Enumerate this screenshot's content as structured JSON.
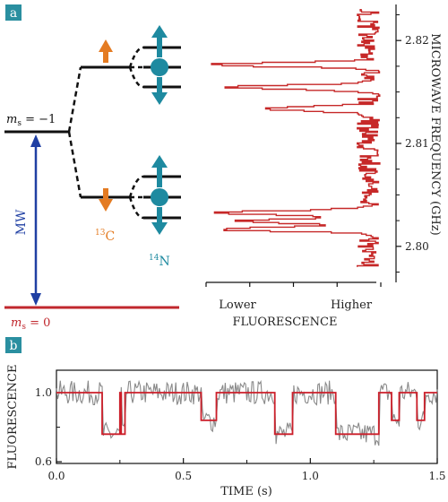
{
  "panels": {
    "a": {
      "label": "a"
    },
    "b": {
      "label": "b"
    }
  },
  "diagram": {
    "ms_minus1": {
      "pre": "m",
      "sub": "s",
      "post": " = −1"
    },
    "ms_zero": {
      "pre": "m",
      "sub": "s",
      "post": " = 0"
    },
    "mw_label": "MW",
    "c13": {
      "sup": "13",
      "base": "C"
    },
    "n14": {
      "sup": "14",
      "base": "N"
    }
  },
  "colors": {
    "panel_label_bg": "#2a8fa0",
    "mw_blue": "#1f3fa3",
    "ground_red": "#c0272d",
    "c13_orange": "#e47b22",
    "n14_teal": "#1e8aa0",
    "spectrum_red": "#c62828",
    "trace_gray": "#8a8a8a",
    "fit_red": "#cc1f2a"
  },
  "chart_data": [
    {
      "type": "line",
      "xlabel": "FLUORESCENCE",
      "ylabel": "MICROWAVE FREQUENCY (GHz)",
      "x_tick_labels": [
        "Lower",
        "Higher"
      ],
      "y_ticks": [
        2.8,
        2.81,
        2.82
      ],
      "y_tick_labels": [
        "2.80",
        "2.81",
        "2.82"
      ],
      "ylim": [
        2.7965,
        2.8235
      ],
      "xlim": [
        0,
        1
      ],
      "dips": [
        {
          "freq": 2.8032,
          "min_fluorescence": 0.05
        },
        {
          "freq": 2.8024,
          "min_fluorescence": 0.15
        },
        {
          "freq": 2.8016,
          "min_fluorescence": 0.06
        },
        {
          "freq": 2.8176,
          "min_fluorescence": 0.04
        },
        {
          "freq": 2.8154,
          "min_fluorescence": 0.12
        },
        {
          "freq": 2.8133,
          "min_fluorescence": 0.3
        }
      ]
    },
    {
      "type": "line",
      "xlabel": "TIME (s)",
      "ylabel": "FLUORESCENCE",
      "x_ticks": [
        0.0,
        0.5,
        1.0,
        1.5
      ],
      "x_tick_labels": [
        "0.0",
        "0.5",
        "1.0",
        "1.5"
      ],
      "y_ticks": [
        0.6,
        1.0
      ],
      "y_tick_labels": [
        "0.6",
        "1.0"
      ],
      "xlim": [
        0,
        1.5
      ],
      "ylim": [
        0.59,
        1.13
      ],
      "fit_steps": [
        {
          "x_start": 0.0,
          "x_end": 0.18,
          "y": 1.0
        },
        {
          "x_start": 0.18,
          "x_end": 0.25,
          "y": 0.76
        },
        {
          "x_start": 0.25,
          "x_end": 0.255,
          "y": 1.0
        },
        {
          "x_start": 0.255,
          "x_end": 0.27,
          "y": 0.76
        },
        {
          "x_start": 0.27,
          "x_end": 0.57,
          "y": 1.0
        },
        {
          "x_start": 0.57,
          "x_end": 0.63,
          "y": 0.84
        },
        {
          "x_start": 0.63,
          "x_end": 0.86,
          "y": 1.0
        },
        {
          "x_start": 0.86,
          "x_end": 0.93,
          "y": 0.76
        },
        {
          "x_start": 0.93,
          "x_end": 1.1,
          "y": 1.0
        },
        {
          "x_start": 1.1,
          "x_end": 1.27,
          "y": 0.76
        },
        {
          "x_start": 1.27,
          "x_end": 1.32,
          "y": 1.0
        },
        {
          "x_start": 1.32,
          "x_end": 1.35,
          "y": 0.84
        },
        {
          "x_start": 1.35,
          "x_end": 1.42,
          "y": 1.0
        },
        {
          "x_start": 1.42,
          "x_end": 1.45,
          "y": 0.84
        },
        {
          "x_start": 1.45,
          "x_end": 1.5,
          "y": 1.0
        }
      ],
      "noise_amplitude": 0.05
    }
  ]
}
